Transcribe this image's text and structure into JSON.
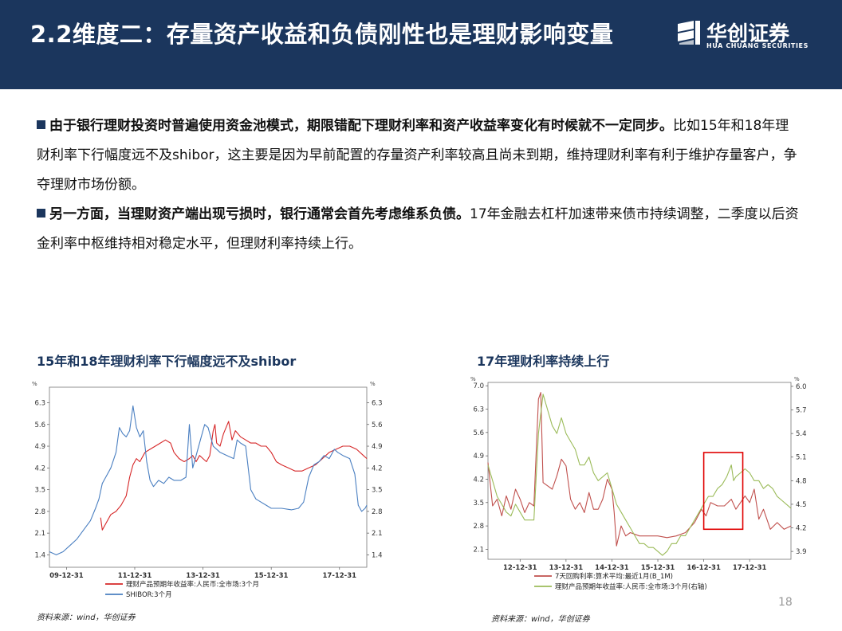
{
  "header": {
    "title": "2.2维度二：存量资产收益和负债刚性也是理财影响变量",
    "logo_cn": "华创证券",
    "logo_en": "HUA CHUANG SECURITIES"
  },
  "body": {
    "p1_bold": "由于银行理财投资时普遍使用资金池模式，期限错配下理财利率和资产收益率变化有时候就不一定同步。",
    "p1_rest": "比如15年和18年理财利率下行幅度远不及shibor，这主要是因为早前配置的存量资产利率较高且尚未到期，维持理财利率有利于维护存量客户，争夺理财市场份额。",
    "p2_bold": "另一方面，当理财资产端出现亏损时，银行通常会首先考虑维系负债。",
    "p2_rest": "17年金融去杠杆加速带来债市持续调整，二季度以后资金利率中枢维持相对稳定水平，但理财利率持续上行。"
  },
  "page_number": "18",
  "chart_data": [
    {
      "type": "line",
      "title": "15年和18年理财利率下行幅度远不及shibor",
      "source": "资料来源：wind，华创证券",
      "corner_label": "%",
      "x_ticks": [
        "09-12-31",
        "11-12-31",
        "13-12-31",
        "15-12-31",
        "17-12-31"
      ],
      "x_range": [
        2009.5,
        2018.8
      ],
      "y_ticks": [
        1.4,
        2.1,
        2.8,
        3.5,
        4.2,
        4.9,
        5.6,
        6.3
      ],
      "ylim": [
        1.0,
        6.8
      ],
      "y2_ticks": [
        1.4,
        2.1,
        2.8,
        3.5,
        4.2,
        4.9,
        5.6,
        6.3
      ],
      "y2lim": [
        1.0,
        6.8
      ],
      "legend_position": "bottom-left",
      "series": [
        {
          "name": "理财产品预期年收益率:人民币:全市场:3个月",
          "color": "#d62728",
          "axis": "left",
          "points": [
            [
              2011.0,
              2.6
            ],
            [
              2011.05,
              2.2
            ],
            [
              2011.15,
              2.4
            ],
            [
              2011.3,
              2.7
            ],
            [
              2011.45,
              2.8
            ],
            [
              2011.6,
              3.0
            ],
            [
              2011.75,
              3.3
            ],
            [
              2011.85,
              3.9
            ],
            [
              2011.95,
              4.3
            ],
            [
              2012.05,
              4.5
            ],
            [
              2012.15,
              4.4
            ],
            [
              2012.3,
              4.7
            ],
            [
              2012.45,
              4.8
            ],
            [
              2012.6,
              4.9
            ],
            [
              2012.75,
              5.0
            ],
            [
              2012.9,
              5.1
            ],
            [
              2013.05,
              5.0
            ],
            [
              2013.15,
              4.7
            ],
            [
              2013.3,
              4.5
            ],
            [
              2013.45,
              4.4
            ],
            [
              2013.6,
              4.5
            ],
            [
              2013.7,
              4.6
            ],
            [
              2013.8,
              4.4
            ],
            [
              2013.9,
              4.6
            ],
            [
              2014.0,
              4.5
            ],
            [
              2014.1,
              4.4
            ],
            [
              2014.2,
              4.6
            ],
            [
              2014.3,
              5.4
            ],
            [
              2014.35,
              5.6
            ],
            [
              2014.4,
              5.0
            ],
            [
              2014.5,
              4.9
            ],
            [
              2014.6,
              5.3
            ],
            [
              2014.75,
              5.7
            ],
            [
              2014.85,
              5.1
            ],
            [
              2014.95,
              5.4
            ],
            [
              2015.1,
              5.2
            ],
            [
              2015.25,
              5.1
            ],
            [
              2015.4,
              5.0
            ],
            [
              2015.55,
              5.0
            ],
            [
              2015.7,
              4.9
            ],
            [
              2015.85,
              4.9
            ],
            [
              2016.0,
              4.7
            ],
            [
              2016.15,
              4.4
            ],
            [
              2016.3,
              4.3
            ],
            [
              2016.5,
              4.2
            ],
            [
              2016.7,
              4.1
            ],
            [
              2016.9,
              4.1
            ],
            [
              2017.1,
              4.2
            ],
            [
              2017.3,
              4.3
            ],
            [
              2017.5,
              4.5
            ],
            [
              2017.7,
              4.7
            ],
            [
              2017.9,
              4.8
            ],
            [
              2018.1,
              4.9
            ],
            [
              2018.3,
              4.9
            ],
            [
              2018.5,
              4.8
            ],
            [
              2018.7,
              4.6
            ],
            [
              2018.8,
              4.5
            ]
          ]
        },
        {
          "name": "SHIBOR:3个月",
          "color": "#4a7fc1",
          "axis": "right",
          "points": [
            [
              2009.5,
              1.5
            ],
            [
              2009.7,
              1.4
            ],
            [
              2009.9,
              1.5
            ],
            [
              2010.1,
              1.7
            ],
            [
              2010.3,
              1.9
            ],
            [
              2010.5,
              2.2
            ],
            [
              2010.7,
              2.5
            ],
            [
              2010.85,
              2.9
            ],
            [
              2010.95,
              3.2
            ],
            [
              2011.05,
              3.7
            ],
            [
              2011.15,
              3.9
            ],
            [
              2011.3,
              4.2
            ],
            [
              2011.45,
              4.7
            ],
            [
              2011.55,
              5.5
            ],
            [
              2011.65,
              5.3
            ],
            [
              2011.75,
              5.2
            ],
            [
              2011.85,
              5.4
            ],
            [
              2011.95,
              6.2
            ],
            [
              2012.05,
              5.5
            ],
            [
              2012.15,
              5.2
            ],
            [
              2012.25,
              5.4
            ],
            [
              2012.35,
              4.4
            ],
            [
              2012.45,
              3.8
            ],
            [
              2012.55,
              3.6
            ],
            [
              2012.7,
              3.8
            ],
            [
              2012.85,
              3.7
            ],
            [
              2013.0,
              3.9
            ],
            [
              2013.15,
              3.8
            ],
            [
              2013.35,
              3.8
            ],
            [
              2013.5,
              3.9
            ],
            [
              2013.6,
              5.6
            ],
            [
              2013.7,
              4.2
            ],
            [
              2013.8,
              4.6
            ],
            [
              2013.95,
              5.2
            ],
            [
              2014.05,
              5.6
            ],
            [
              2014.15,
              5.5
            ],
            [
              2014.3,
              4.9
            ],
            [
              2014.5,
              4.7
            ],
            [
              2014.7,
              4.6
            ],
            [
              2014.9,
              4.5
            ],
            [
              2015.0,
              5.1
            ],
            [
              2015.1,
              5.0
            ],
            [
              2015.25,
              4.9
            ],
            [
              2015.4,
              3.5
            ],
            [
              2015.55,
              3.2
            ],
            [
              2015.7,
              3.1
            ],
            [
              2015.85,
              3.0
            ],
            [
              2016.0,
              2.9
            ],
            [
              2016.3,
              2.9
            ],
            [
              2016.6,
              2.85
            ],
            [
              2016.8,
              2.9
            ],
            [
              2016.95,
              3.1
            ],
            [
              2017.1,
              3.9
            ],
            [
              2017.25,
              4.3
            ],
            [
              2017.4,
              4.4
            ],
            [
              2017.55,
              4.6
            ],
            [
              2017.7,
              4.5
            ],
            [
              2017.85,
              4.8
            ],
            [
              2017.95,
              4.7
            ],
            [
              2018.1,
              4.6
            ],
            [
              2018.3,
              4.5
            ],
            [
              2018.45,
              4.0
            ],
            [
              2018.55,
              3.0
            ],
            [
              2018.65,
              2.8
            ],
            [
              2018.75,
              2.9
            ],
            [
              2018.8,
              3.0
            ]
          ]
        }
      ]
    },
    {
      "type": "line",
      "title": "17年理财利率持续上行",
      "source": "资料来源：wind，华创证券",
      "corner_label": "%",
      "x_ticks": [
        "12-12-31",
        "13-12-31",
        "14-12-31",
        "15-12-31",
        "16-12-31",
        "17-12-31"
      ],
      "x_range": [
        2012.3,
        2018.9
      ],
      "y_ticks": [
        2.1,
        2.8,
        3.5,
        4.2,
        4.9,
        5.6,
        6.3,
        7.0
      ],
      "ylim": [
        1.8,
        7.1
      ],
      "y2_ticks": [
        3.9,
        4.2,
        4.5,
        4.8,
        5.1,
        5.4,
        5.7,
        6.0
      ],
      "y2lim": [
        3.8,
        6.05
      ],
      "legend_position": "bottom-left",
      "highlight": {
        "x0": 2017.0,
        "x1": 2017.85,
        "y0": 2.7,
        "y1": 5.0
      },
      "series": [
        {
          "name": "7天回购利率:算术平均:最近1月(B_1M)",
          "color": "#c0504d",
          "axis": "left",
          "points": [
            [
              2012.3,
              4.7
            ],
            [
              2012.4,
              3.4
            ],
            [
              2012.5,
              3.6
            ],
            [
              2012.6,
              3.1
            ],
            [
              2012.7,
              3.7
            ],
            [
              2012.8,
              3.3
            ],
            [
              2012.9,
              3.9
            ],
            [
              2013.0,
              3.6
            ],
            [
              2013.1,
              3.2
            ],
            [
              2013.2,
              3.5
            ],
            [
              2013.3,
              3.4
            ],
            [
              2013.4,
              6.6
            ],
            [
              2013.45,
              6.8
            ],
            [
              2013.5,
              4.1
            ],
            [
              2013.6,
              4.0
            ],
            [
              2013.7,
              3.9
            ],
            [
              2013.8,
              4.3
            ],
            [
              2013.9,
              4.8
            ],
            [
              2014.0,
              4.6
            ],
            [
              2014.1,
              3.6
            ],
            [
              2014.2,
              3.3
            ],
            [
              2014.3,
              3.5
            ],
            [
              2014.4,
              3.2
            ],
            [
              2014.5,
              3.8
            ],
            [
              2014.6,
              3.3
            ],
            [
              2014.7,
              3.3
            ],
            [
              2014.8,
              3.6
            ],
            [
              2014.9,
              4.2
            ],
            [
              2015.0,
              3.9
            ],
            [
              2015.05,
              3.2
            ],
            [
              2015.1,
              2.2
            ],
            [
              2015.2,
              2.8
            ],
            [
              2015.3,
              2.5
            ],
            [
              2015.4,
              2.6
            ],
            [
              2015.6,
              2.5
            ],
            [
              2015.8,
              2.5
            ],
            [
              2016.0,
              2.5
            ],
            [
              2016.2,
              2.45
            ],
            [
              2016.4,
              2.5
            ],
            [
              2016.6,
              2.6
            ],
            [
              2016.8,
              2.9
            ],
            [
              2016.95,
              3.3
            ],
            [
              2017.05,
              3.1
            ],
            [
              2017.15,
              3.5
            ],
            [
              2017.3,
              3.4
            ],
            [
              2017.45,
              3.4
            ],
            [
              2017.6,
              3.6
            ],
            [
              2017.7,
              3.3
            ],
            [
              2017.8,
              3.5
            ],
            [
              2017.9,
              3.7
            ],
            [
              2018.0,
              3.5
            ],
            [
              2018.1,
              3.9
            ],
            [
              2018.2,
              3.0
            ],
            [
              2018.3,
              3.3
            ],
            [
              2018.45,
              2.7
            ],
            [
              2018.6,
              2.9
            ],
            [
              2018.75,
              2.7
            ],
            [
              2018.9,
              2.8
            ]
          ]
        },
        {
          "name": "理财产品预期年收益率:人民币:全市场:3个月(右轴)",
          "color": "#9bbb59",
          "axis": "right",
          "points": [
            [
              2012.3,
              5.0
            ],
            [
              2012.4,
              4.8
            ],
            [
              2012.5,
              4.6
            ],
            [
              2012.6,
              4.5
            ],
            [
              2012.7,
              4.4
            ],
            [
              2012.8,
              4.35
            ],
            [
              2012.9,
              4.5
            ],
            [
              2013.0,
              4.4
            ],
            [
              2013.1,
              4.3
            ],
            [
              2013.2,
              4.3
            ],
            [
              2013.3,
              4.3
            ],
            [
              2013.4,
              5.4
            ],
            [
              2013.5,
              5.9
            ],
            [
              2013.6,
              5.7
            ],
            [
              2013.7,
              5.5
            ],
            [
              2013.8,
              5.4
            ],
            [
              2013.9,
              5.6
            ],
            [
              2014.0,
              5.4
            ],
            [
              2014.1,
              5.3
            ],
            [
              2014.2,
              5.2
            ],
            [
              2014.3,
              5.0
            ],
            [
              2014.4,
              5.0
            ],
            [
              2014.5,
              5.1
            ],
            [
              2014.6,
              4.9
            ],
            [
              2014.7,
              4.8
            ],
            [
              2014.8,
              4.85
            ],
            [
              2014.9,
              4.9
            ],
            [
              2015.0,
              4.7
            ],
            [
              2015.1,
              4.5
            ],
            [
              2015.2,
              4.4
            ],
            [
              2015.3,
              4.3
            ],
            [
              2015.4,
              4.2
            ],
            [
              2015.5,
              4.1
            ],
            [
              2015.6,
              4.0
            ],
            [
              2015.7,
              4.0
            ],
            [
              2015.8,
              3.95
            ],
            [
              2015.9,
              3.95
            ],
            [
              2016.0,
              3.9
            ],
            [
              2016.1,
              3.85
            ],
            [
              2016.2,
              3.9
            ],
            [
              2016.3,
              4.0
            ],
            [
              2016.4,
              4.0
            ],
            [
              2016.5,
              4.1
            ],
            [
              2016.6,
              4.1
            ],
            [
              2016.7,
              4.2
            ],
            [
              2016.8,
              4.3
            ],
            [
              2016.9,
              4.4
            ],
            [
              2017.0,
              4.5
            ],
            [
              2017.1,
              4.6
            ],
            [
              2017.2,
              4.6
            ],
            [
              2017.3,
              4.7
            ],
            [
              2017.4,
              4.75
            ],
            [
              2017.5,
              4.85
            ],
            [
              2017.6,
              5.0
            ],
            [
              2017.65,
              4.8
            ],
            [
              2017.7,
              4.85
            ],
            [
              2017.8,
              4.9
            ],
            [
              2017.9,
              4.95
            ],
            [
              2018.0,
              4.9
            ],
            [
              2018.1,
              4.8
            ],
            [
              2018.2,
              4.8
            ],
            [
              2018.3,
              4.7
            ],
            [
              2018.4,
              4.75
            ],
            [
              2018.5,
              4.7
            ],
            [
              2018.6,
              4.6
            ],
            [
              2018.7,
              4.55
            ],
            [
              2018.8,
              4.5
            ],
            [
              2018.9,
              4.45
            ]
          ]
        }
      ]
    }
  ]
}
